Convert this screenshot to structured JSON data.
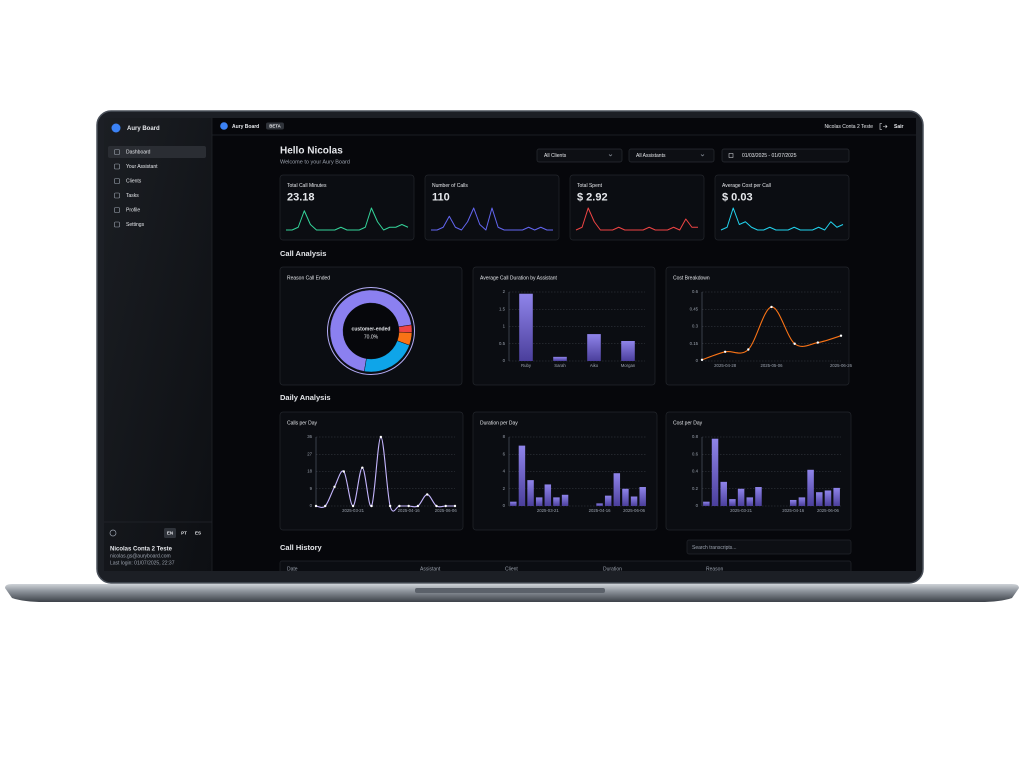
{
  "sidebar": {
    "brand": "Aury Board",
    "nav": [
      "Dashboard",
      "Your Assistant",
      "Clients",
      "Tasks",
      "Profile",
      "Settings"
    ],
    "languages": [
      "EN",
      "PT",
      "ES"
    ],
    "user": {
      "name": "Nicolas Conta 2 Teste",
      "email": "nicolas.gs@auryboard.com",
      "last_login": "Last login: 01/07/2025, 22:37"
    }
  },
  "topbar": {
    "brand": "Aury Board",
    "badge": "BETA",
    "account": "Nicolas Conta 2 Teste",
    "logout": "Sair"
  },
  "header": {
    "title": "Hello Nicolas",
    "subtitle": "Welcome to your Aury Board",
    "filters": [
      "All Clients",
      "All Assistants",
      "01/03/2025 - 01/07/2025"
    ]
  },
  "kpis": [
    {
      "label": "Total Call Minutes",
      "value": "23.18",
      "color": "#34d399",
      "spark": [
        1,
        1,
        2,
        8,
        3,
        1,
        1,
        1,
        1,
        2,
        1,
        1,
        1,
        2,
        9,
        4,
        1,
        2,
        2,
        3,
        2
      ]
    },
    {
      "label": "Number of Calls",
      "value": "110",
      "color": "#6366f1",
      "spark": [
        1,
        1,
        2,
        6,
        2,
        1,
        4,
        9,
        3,
        1,
        9,
        2,
        1,
        1,
        1,
        1,
        2,
        1,
        2,
        1,
        1
      ]
    },
    {
      "label": "Total Spent",
      "value": "$ 2.92",
      "color": "#ef4444",
      "spark": [
        1,
        2,
        9,
        4,
        1,
        1,
        1,
        2,
        1,
        1,
        1,
        1,
        2,
        1,
        1,
        1,
        2,
        1,
        5,
        2,
        2
      ]
    },
    {
      "label": "Average Cost per Call",
      "value": "$ 0.03",
      "color": "#22d3ee",
      "spark": [
        1,
        2,
        9,
        3,
        4,
        2,
        1,
        1,
        2,
        1,
        1,
        1,
        2,
        1,
        1,
        1,
        2,
        1,
        4,
        2,
        3
      ]
    }
  ],
  "sections": [
    "Call Analysis",
    "Daily Analysis"
  ],
  "chart_data": [
    {
      "type": "donut",
      "title": "Reason Call Ended",
      "categories": [
        "customer-ended",
        null,
        null,
        null
      ],
      "values": [
        70,
        22,
        5,
        3
      ],
      "value_labels": [
        "70.0%",
        null,
        null,
        null
      ],
      "colors": [
        "#8b80f0",
        "#0ea5e9",
        "#f97316",
        "#ef4444"
      ]
    },
    {
      "type": "bar",
      "title": "Average Call Duration by Assistant",
      "categories": [
        "Ruby",
        "Sarah",
        "Aiko",
        "Morgan"
      ],
      "values": [
        1.95,
        0.12,
        0.78,
        0.58
      ],
      "color": "#7c6fd6",
      "ylim": [
        0,
        2
      ],
      "yticks": [
        0,
        0.5,
        1,
        1.5,
        2
      ],
      "grid": true
    },
    {
      "type": "line",
      "title": "Cost Breakdown",
      "categories": [
        null,
        "2025-04-28",
        null,
        "2025-05-06",
        null,
        null,
        "2025-06-26"
      ],
      "values": [
        0.01,
        0.08,
        0.1,
        0.47,
        0.15,
        0.16,
        0.22
      ],
      "color": "#f97316",
      "ylim": [
        0,
        0.6
      ],
      "yticks": [
        0,
        0.15,
        0.3,
        0.45,
        0.6
      ],
      "grid": true
    },
    {
      "type": "line",
      "title": "Calls per Day",
      "categories": [
        null,
        null,
        null,
        null,
        "2025-03-21",
        null,
        null,
        null,
        null,
        null,
        "2025-04-16",
        null,
        null,
        null,
        "2025-06-06",
        null
      ],
      "values": [
        0,
        0,
        10,
        18,
        0,
        20,
        0,
        36,
        0,
        0,
        0,
        0,
        6,
        0,
        0,
        0
      ],
      "color": "#c4b5fd",
      "ylim": [
        0,
        36
      ],
      "yticks": [
        0,
        9,
        18,
        27,
        36
      ],
      "grid": true
    },
    {
      "type": "bar",
      "title": "Duration per Day",
      "categories": [
        null,
        null,
        null,
        null,
        "2025-03-21",
        null,
        null,
        null,
        null,
        null,
        "2025-04-16",
        null,
        null,
        null,
        "2025-06-06",
        null
      ],
      "values": [
        0.5,
        7,
        3,
        1,
        2.5,
        1,
        1.3,
        0,
        0,
        0,
        0.3,
        1.2,
        3.8,
        2,
        1.1,
        2.2
      ],
      "color": "#7c6fd6",
      "ylim": [
        0,
        8
      ],
      "yticks": [
        0,
        2,
        4,
        6,
        8
      ],
      "grid": true
    },
    {
      "type": "bar",
      "title": "Cost per Day",
      "categories": [
        null,
        null,
        null,
        null,
        "2025-03-21",
        null,
        null,
        null,
        null,
        null,
        "2025-04-16",
        null,
        null,
        null,
        "2025-06-06",
        null
      ],
      "values": [
        0.05,
        0.78,
        0.28,
        0.08,
        0.2,
        0.1,
        0.22,
        0,
        0,
        0,
        0.07,
        0.1,
        0.42,
        0.16,
        0.18,
        0.21
      ],
      "color": "#7c6fd6",
      "ylim": [
        0,
        0.8
      ],
      "yticks": [
        0,
        0.2,
        0.4,
        0.6,
        0.8
      ],
      "grid": true
    }
  ],
  "history": {
    "title": "Call History",
    "search": "Search transcripts...",
    "columns": [
      "Date",
      "Assistant",
      "Client",
      "Duration",
      "Reason"
    ]
  }
}
